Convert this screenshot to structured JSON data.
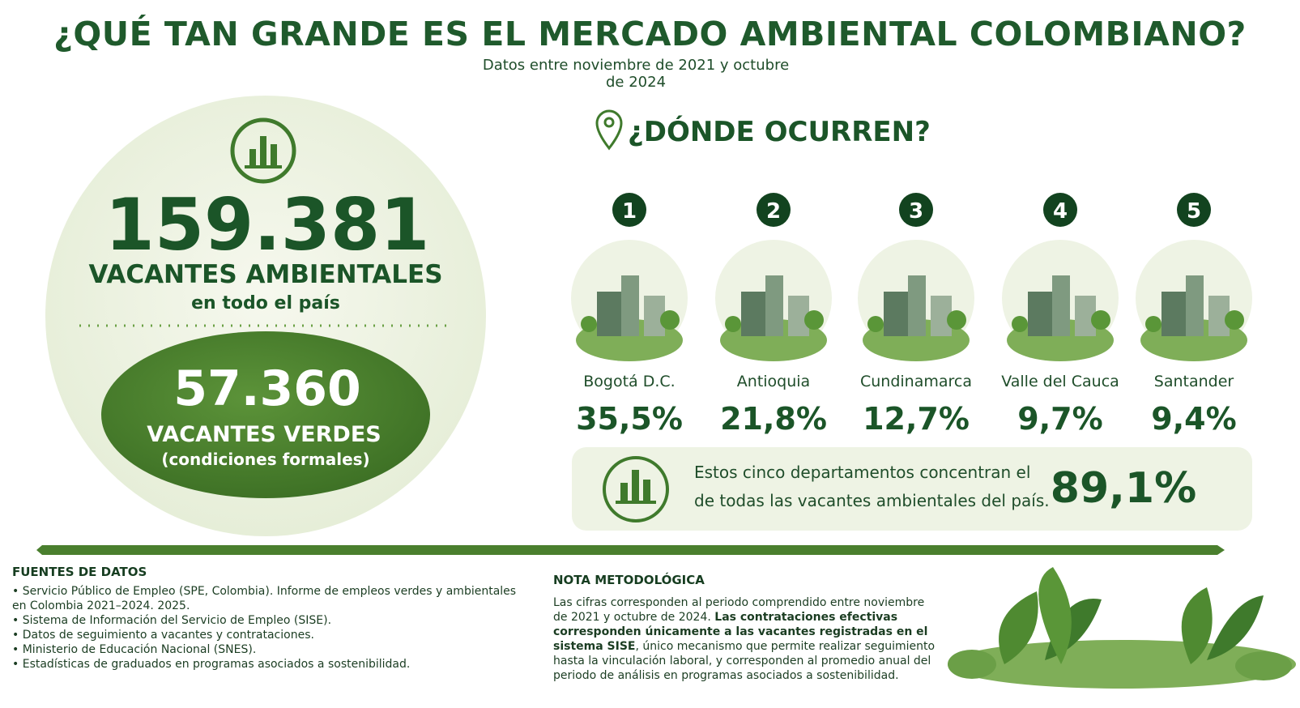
{
  "header": {
    "title": "¿QUÉ TAN GRANDE ES EL MERCADO AMBIENTAL COLOMBIANO?",
    "subtitle": "Datos entre noviembre de 2021 y octubre de 2024"
  },
  "totals": {
    "all_value": "159.381",
    "all_label": "VACANTES AMBIENTALES",
    "all_sub": "en todo el país",
    "green_value": "57.360",
    "green_label": "VACANTES VERDES",
    "green_sub": "(condiciones formales)"
  },
  "regions": {
    "title": "¿DÓNDE OCURREN?",
    "items": [
      {
        "rank": "1",
        "name": "Bogotá D.C.",
        "share": "35,5%"
      },
      {
        "rank": "2",
        "name": "Antioquia",
        "share": "21,8%"
      },
      {
        "rank": "3",
        "name": "Cundinamarca",
        "share": "12,7%"
      },
      {
        "rank": "4",
        "name": "Valle del Cauca",
        "share": "9,7%"
      },
      {
        "rank": "5",
        "name": "Santander",
        "share": "9,4%"
      }
    ]
  },
  "summary": {
    "text": "Estos cinco departamentos concentran el de todas las vacantes ambientales del país.",
    "value": "89,1%"
  },
  "sources": {
    "title": "FUENTES DE DATOS",
    "items": [
      "Servicio Público de Empleo (SPE, Colombia). Informe de empleos verdes y ambientales en Colombia 2021–2024. 2025.",
      "Sistema de Información del Servicio de Empleo (SISE).",
      "Datos de seguimiento a vacantes y contrataciones.",
      "Ministerio de Educación Nacional (SNES).",
      "Estadísticas de graduados en programas asociados a sostenibilidad."
    ]
  },
  "note": {
    "title": "NOTA METODOLÓGICA",
    "text_before": "Las cifras corresponden al periodo comprendido entre noviembre de 2021 y octubre de 2024.",
    "bold": "Las contrataciones efectivas corresponden únicamente a las vacantes registradas en el sistema SISE",
    "text_after": ", único mecanismo que permite realizar seguimiento hasta la vinculación laboral, y corresponden al promedio anual del periodo de análisis en programas asociados a sostenibilidad."
  }
}
